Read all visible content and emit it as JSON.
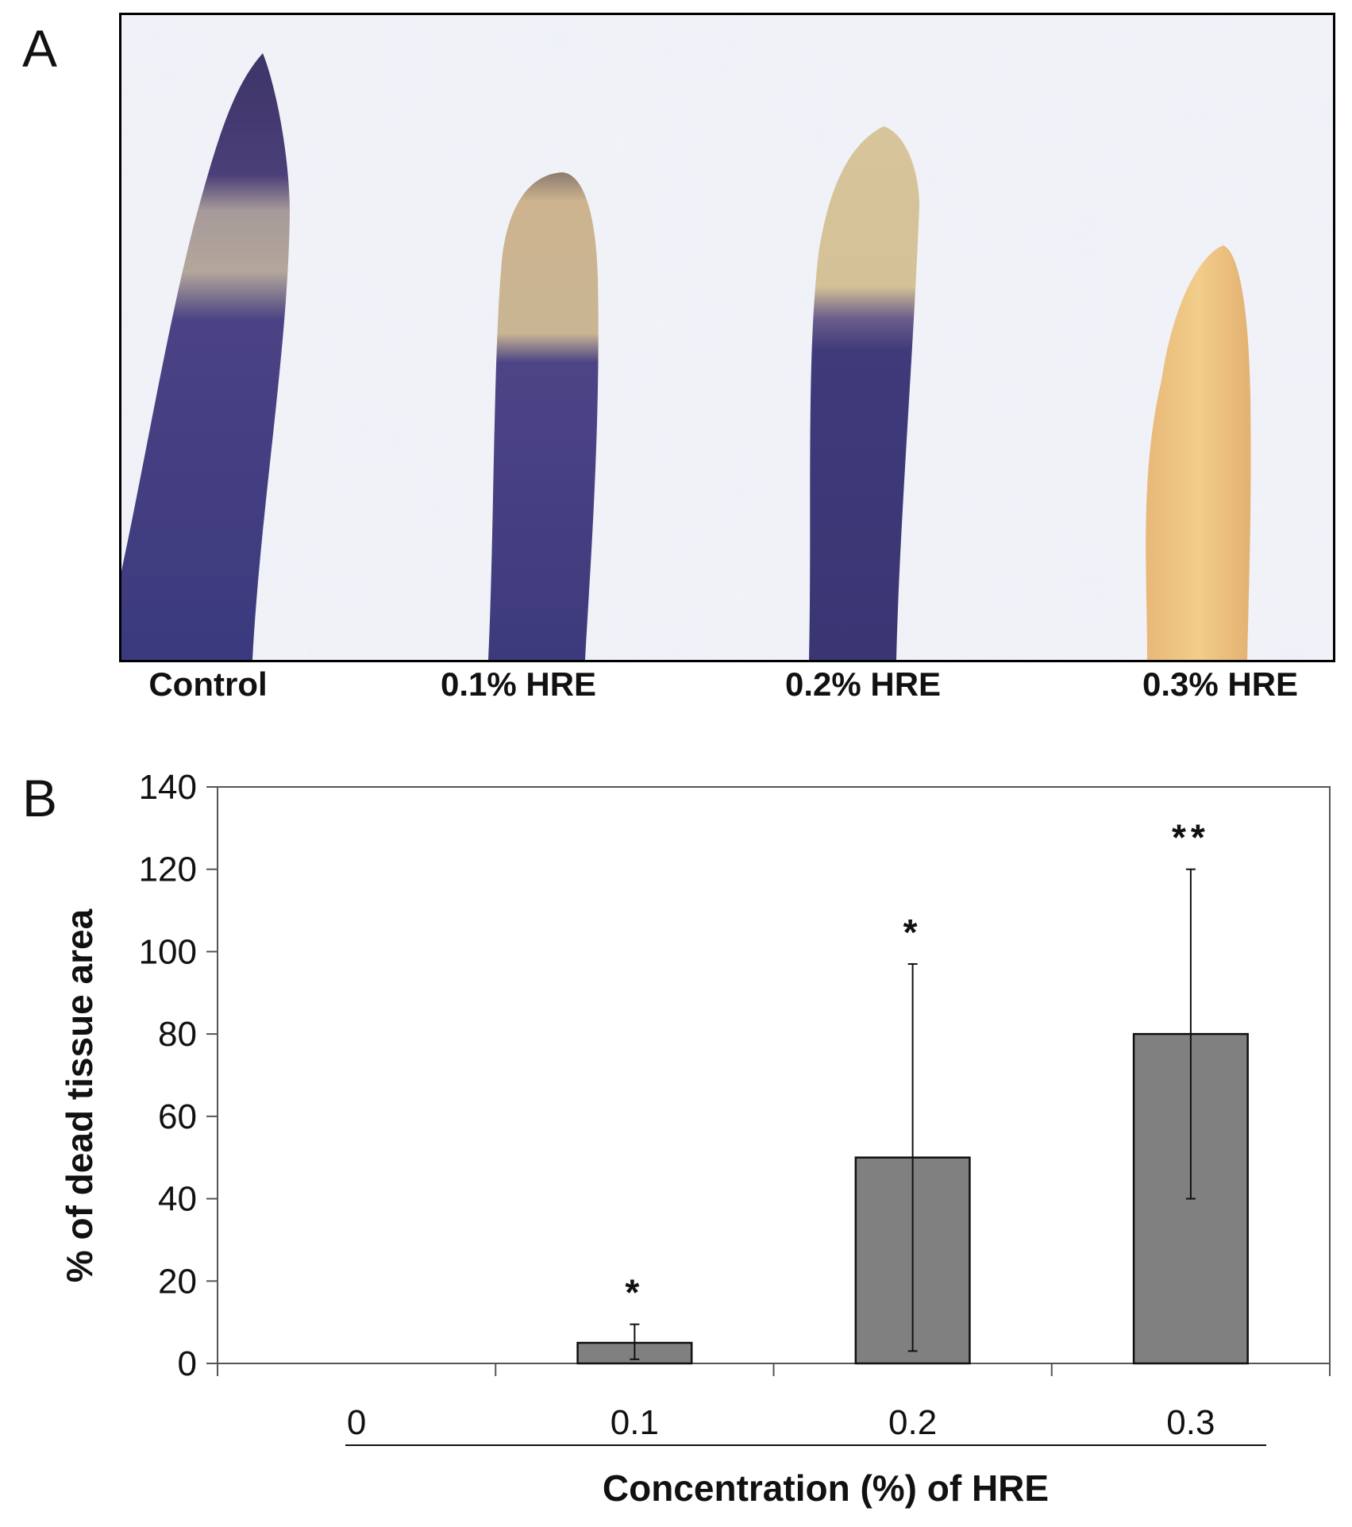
{
  "panel_a": {
    "letter": "A",
    "labels": [
      "Control",
      "0.1% HRE",
      "0.2% HRE",
      "0.3% HRE"
    ]
  },
  "panel_b": {
    "letter": "B"
  },
  "chart_data": {
    "type": "bar",
    "categories": [
      "0",
      "0.1",
      "0.2",
      "0.3"
    ],
    "values": [
      0,
      5,
      50,
      80
    ],
    "error_upper": [
      0,
      9.5,
      97,
      120
    ],
    "error_lower": [
      0,
      1,
      3,
      40
    ],
    "significance": [
      "",
      "*",
      "*",
      "**"
    ],
    "ylabel": "% of dead tissue area",
    "xlabel": "Concentration (%) of  HRE",
    "ylim": [
      0,
      140
    ],
    "yticks": [
      0,
      20,
      40,
      60,
      80,
      100,
      120,
      140
    ],
    "bar_color": "#808080",
    "grid": false
  }
}
